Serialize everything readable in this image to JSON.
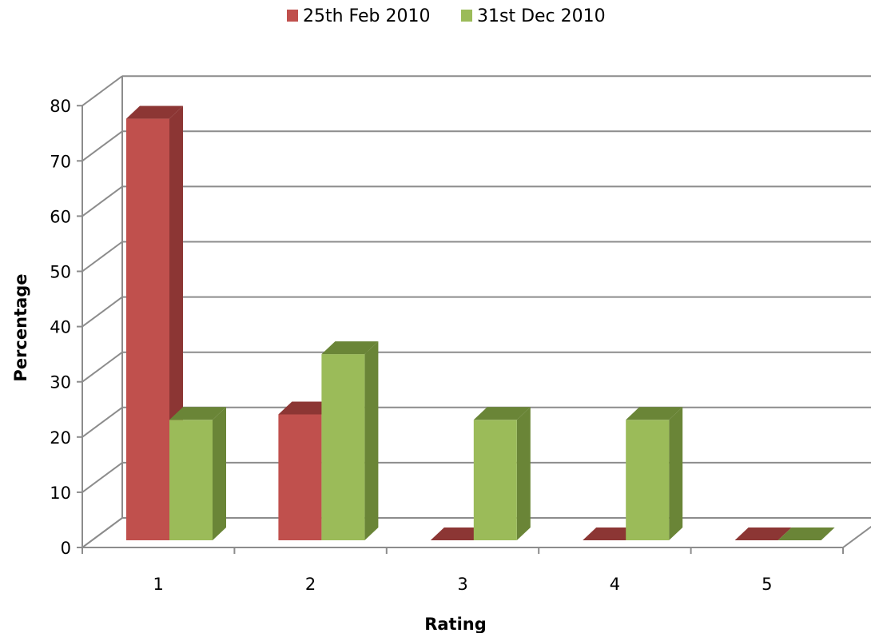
{
  "chart_data": {
    "type": "bar",
    "style": "3d-clustered-column",
    "categories": [
      "1",
      "2",
      "3",
      "4",
      "5"
    ],
    "series": [
      {
        "name": "25th Feb 2010",
        "values": [
          77,
          23,
          0,
          0,
          0
        ],
        "color": "#C0504D",
        "color_dark": "#8C3634"
      },
      {
        "name": "31st Dec 2010",
        "values": [
          22,
          34,
          22,
          22,
          0
        ],
        "color": "#9BBB59",
        "color_dark": "#6A8537"
      }
    ],
    "title": "",
    "xlabel": "Rating",
    "ylabel": "Percentage",
    "ylim": [
      0,
      80
    ],
    "yticks": [
      "0",
      "10",
      "20",
      "30",
      "40",
      "50",
      "60",
      "70",
      "80"
    ],
    "grid": true,
    "legend": "top"
  }
}
